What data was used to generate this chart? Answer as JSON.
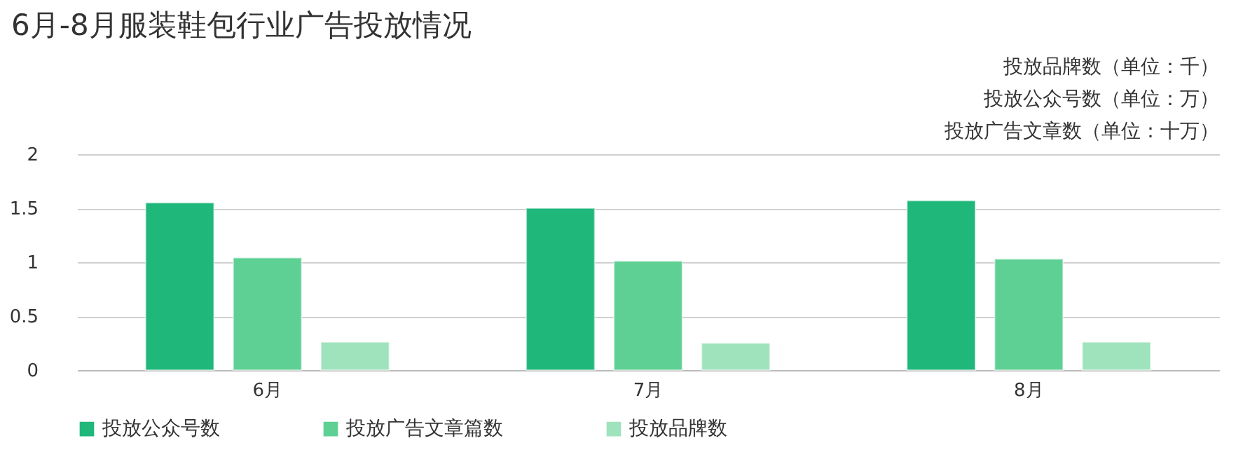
{
  "chart_data": {
    "type": "bar",
    "title": "6月-8月服装鞋包行业广告投放情况",
    "annotations": [
      "投放品牌数（单位：千）",
      "投放公众号数（单位：万）",
      "投放广告文章数（单位：十万）"
    ],
    "categories": [
      "6月",
      "7月",
      "8月"
    ],
    "series": [
      {
        "name": "投放公众号数",
        "color": "#1fb77a",
        "values": [
          1.55,
          1.5,
          1.57
        ]
      },
      {
        "name": "投放广告文章篇数",
        "color": "#5ed093",
        "values": [
          1.04,
          1.01,
          1.03
        ]
      },
      {
        "name": "投放品牌数",
        "color": "#9fe3bd",
        "values": [
          0.26,
          0.25,
          0.26
        ]
      }
    ],
    "ylim": [
      0,
      2
    ],
    "yticks": [
      0,
      0.5,
      1,
      1.5,
      2
    ],
    "grid": "y",
    "legend": "bottom"
  }
}
